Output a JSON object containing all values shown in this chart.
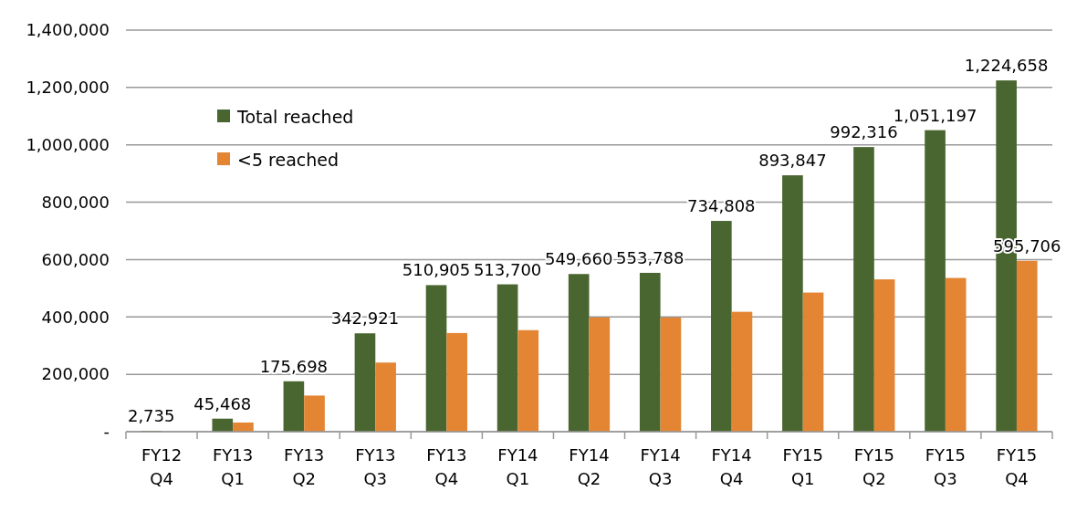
{
  "chart_data": {
    "type": "bar",
    "categories": [
      "FY12\nQ4",
      "FY13\nQ1",
      "FY13\nQ2",
      "FY13\nQ3",
      "FY13\nQ4",
      "FY14\nQ1",
      "FY14\nQ2",
      "FY14\nQ3",
      "FY14\nQ4",
      "FY15\nQ1",
      "FY15\nQ2",
      "FY15\nQ3",
      "FY15\nQ4"
    ],
    "series": [
      {
        "name": "Total reached",
        "color": "#4a6630",
        "values": [
          2735,
          45468,
          175698,
          342921,
          510905,
          513700,
          549660,
          553788,
          734808,
          893847,
          992316,
          1051197,
          1224658
        ],
        "value_labels": [
          "2,735",
          "45,468",
          "175,698",
          "342,921",
          "510,905",
          "513,700",
          "549,660",
          "553,788",
          "734,808",
          "893,847",
          "992,316",
          "1,051,197",
          "1,224,658"
        ]
      },
      {
        "name": "<5 reached",
        "color": "#e38533",
        "values": [
          0,
          32000,
          126000,
          241000,
          344000,
          354000,
          398000,
          398000,
          418000,
          485000,
          531000,
          536000,
          595706
        ],
        "value_labels": [
          null,
          null,
          null,
          null,
          null,
          null,
          null,
          null,
          null,
          null,
          null,
          null,
          "595,706"
        ]
      }
    ],
    "ylim": [
      0,
      1400000
    ],
    "yticks": [
      {
        "value": 0,
        "label": "-"
      },
      {
        "value": 200000,
        "label": "200,000"
      },
      {
        "value": 400000,
        "label": "400,000"
      },
      {
        "value": 600000,
        "label": "600,000"
      },
      {
        "value": 800000,
        "label": "800,000"
      },
      {
        "value": 1000000,
        "label": "1,000,000"
      },
      {
        "value": 1200000,
        "label": "1,200,000"
      },
      {
        "value": 1400000,
        "label": "1,400,000"
      }
    ],
    "grid": "y",
    "legend": "top left"
  }
}
